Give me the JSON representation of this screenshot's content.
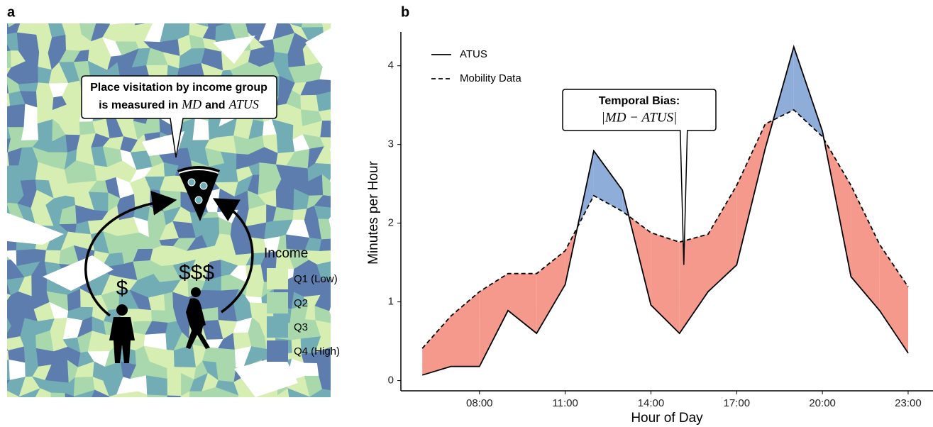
{
  "map_panel": {
    "panel_label": "a",
    "callout": {
      "line1": "Place visitation by income group",
      "line2": [
        "is measured in",
        "MD",
        "and",
        "ATUS"
      ]
    },
    "low_income_marker": "$",
    "high_income_marker": "$$$",
    "legend": {
      "title": "Income",
      "items": [
        {
          "label": "Q1 (Low)",
          "color": "#d6eeb2"
        },
        {
          "label": "Q2",
          "color": "#a8d8ab"
        },
        {
          "label": "Q3",
          "color": "#72adb6"
        },
        {
          "label": "Q4 (High)",
          "color": "#5c7dad"
        }
      ]
    }
  },
  "chart_data": {
    "type": "line",
    "panel_label": "b",
    "x_label": "Hour of Day",
    "y_label": "Minutes per Hour",
    "x": [
      6,
      7,
      8,
      9,
      10,
      11,
      12,
      13,
      14,
      15,
      16,
      17,
      18,
      19,
      20,
      21,
      22,
      23
    ],
    "series": [
      {
        "name": "ATUS",
        "color": "#000000",
        "linestyle": "solid",
        "values": [
          0.07,
          0.18,
          0.18,
          0.89,
          0.6,
          1.22,
          2.92,
          2.42,
          0.96,
          0.6,
          1.13,
          1.47,
          2.95,
          4.24,
          3.17,
          1.32,
          0.89,
          0.35
        ]
      },
      {
        "name": "Mobility Data",
        "color": "#000000",
        "linestyle": "dashed",
        "values": [
          0.41,
          0.82,
          1.13,
          1.36,
          1.36,
          1.65,
          2.35,
          2.15,
          1.88,
          1.76,
          1.86,
          2.48,
          3.26,
          3.44,
          3.1,
          2.48,
          1.73,
          1.19
        ]
      }
    ],
    "md_higher_color": "#f4998b",
    "atus_higher_color": "#8fadd9",
    "xlim": [
      5.25,
      23.87
    ],
    "ylim": [
      -0.13,
      4.43
    ],
    "xticks": [
      {
        "value": 8,
        "label": "08:00"
      },
      {
        "value": 11,
        "label": "11:00"
      },
      {
        "value": 14,
        "label": "14:00"
      },
      {
        "value": 17,
        "label": "17:00"
      },
      {
        "value": 20,
        "label": "20:00"
      },
      {
        "value": 23,
        "label": "23:00"
      }
    ],
    "yticks": [
      0,
      1,
      2,
      3,
      4
    ],
    "legend_position": "top-left",
    "annotation": {
      "title": "Temporal Bias:",
      "formula": "|MD − ATUS|",
      "x": 15.15,
      "y": 1.47
    }
  }
}
